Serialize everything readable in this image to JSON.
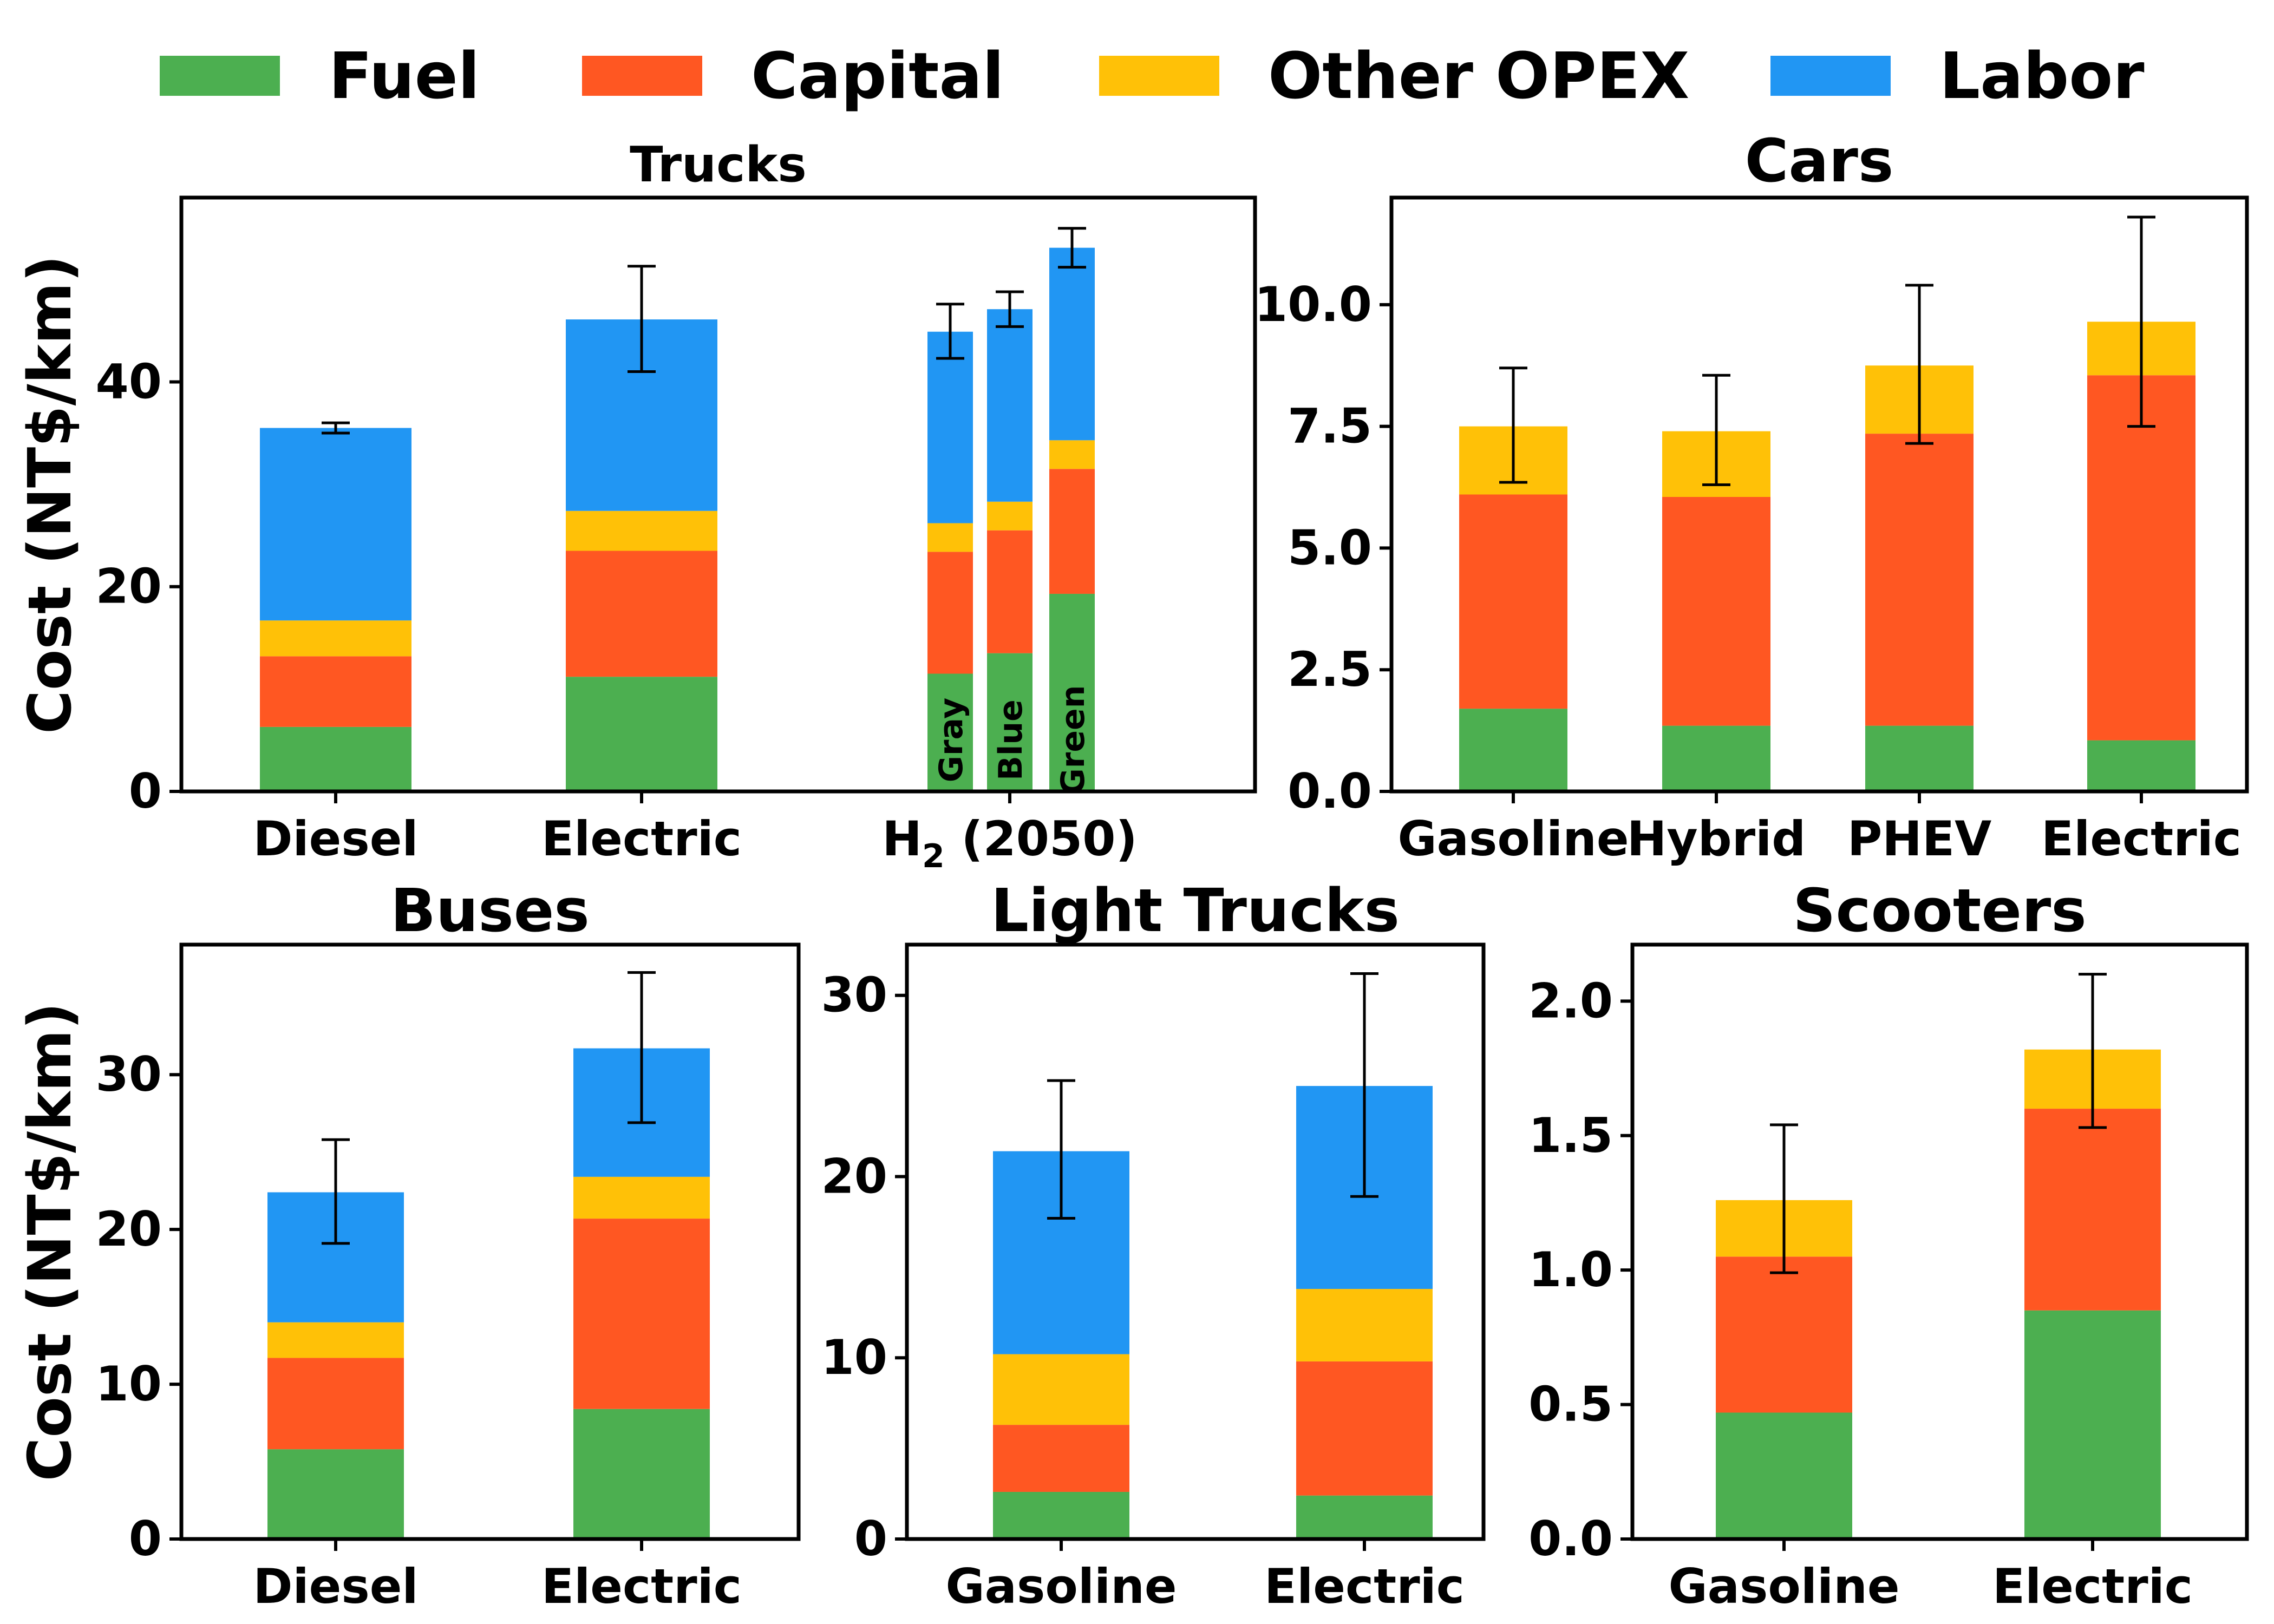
{
  "legend": {
    "items": [
      {
        "key": "fuel",
        "label": "Fuel",
        "color": "#4CAF50"
      },
      {
        "key": "capital",
        "label": "Capital",
        "color": "#FF5722"
      },
      {
        "key": "opex",
        "label": "Other OPEX",
        "color": "#FFC107"
      },
      {
        "key": "labor",
        "label": "Labor",
        "color": "#2196F3"
      }
    ]
  },
  "ylabel": "Cost (NT$/km)",
  "chart_data": [
    {
      "type": "bar",
      "stacked": true,
      "title": "Trucks",
      "ylim": [
        0,
        58
      ],
      "yticks": [
        0,
        20,
        40
      ],
      "groups": [
        {
          "label": "Diesel",
          "bars": [
            {
              "fuel": 6.3,
              "capital": 6.9,
              "opex": 3.5,
              "labor": 18.8,
              "total": 35.5,
              "err_low": 35.0,
              "err_high": 36.0
            }
          ]
        },
        {
          "label": "Electric",
          "bars": [
            {
              "fuel": 11.2,
              "capital": 12.3,
              "opex": 3.9,
              "labor": 18.7,
              "total": 46.1,
              "err_low": 41.0,
              "err_high": 51.3
            }
          ]
        },
        {
          "label": "H₂ (2050)",
          "label_base": "H",
          "label_sub": "2",
          "label_rest": " (2050)",
          "bars": [
            {
              "sublabel": "Gray",
              "fuel": 11.5,
              "capital": 11.9,
              "opex": 2.8,
              "labor": 18.7,
              "total": 44.9,
              "err_low": 42.3,
              "err_high": 47.6
            },
            {
              "sublabel": "Blue",
              "fuel": 13.5,
              "capital": 12.0,
              "opex": 2.8,
              "labor": 18.8,
              "total": 47.1,
              "err_low": 45.4,
              "err_high": 48.8
            },
            {
              "sublabel": "Green",
              "fuel": 19.3,
              "capital": 12.2,
              "opex": 2.8,
              "labor": 18.8,
              "total": 53.1,
              "err_low": 51.2,
              "err_high": 55.0
            }
          ]
        }
      ]
    },
    {
      "type": "bar",
      "stacked": true,
      "title": "Cars",
      "ylim": [
        0,
        12.2
      ],
      "yticks": [
        0.0,
        2.5,
        5.0,
        7.5,
        10.0
      ],
      "tick_format": 1,
      "groups": [
        {
          "label": "Gasoline",
          "bars": [
            {
              "fuel": 1.7,
              "capital": 4.4,
              "opex": 1.4,
              "labor": 0,
              "total": 7.5,
              "err_low": 6.35,
              "err_high": 8.7
            }
          ]
        },
        {
          "label": "Hybrid",
          "bars": [
            {
              "fuel": 1.35,
              "capital": 4.7,
              "opex": 1.35,
              "labor": 0,
              "total": 7.4,
              "err_low": 6.3,
              "err_high": 8.55
            }
          ]
        },
        {
          "label": "PHEV",
          "bars": [
            {
              "fuel": 1.35,
              "capital": 6.0,
              "opex": 1.4,
              "labor": 0,
              "total": 8.75,
              "err_low": 7.15,
              "err_high": 10.4
            }
          ]
        },
        {
          "label": "Electric",
          "bars": [
            {
              "fuel": 1.05,
              "capital": 7.5,
              "opex": 1.1,
              "labor": 0,
              "total": 9.65,
              "err_low": 7.5,
              "err_high": 11.8
            }
          ]
        }
      ]
    },
    {
      "type": "bar",
      "stacked": true,
      "title": "Buses",
      "ylim": [
        0,
        38.4
      ],
      "yticks": [
        0,
        10,
        20,
        30
      ],
      "groups": [
        {
          "label": "Diesel",
          "bars": [
            {
              "fuel": 5.8,
              "capital": 5.9,
              "opex": 2.3,
              "labor": 8.4,
              "total": 22.4,
              "err_low": 19.1,
              "err_high": 25.8
            }
          ]
        },
        {
          "label": "Electric",
          "bars": [
            {
              "fuel": 8.4,
              "capital": 12.3,
              "opex": 2.7,
              "labor": 8.3,
              "total": 31.7,
              "err_low": 26.9,
              "err_high": 36.6
            }
          ]
        }
      ]
    },
    {
      "type": "bar",
      "stacked": true,
      "title": "Light Trucks",
      "ylim": [
        0,
        32.8
      ],
      "yticks": [
        0,
        10,
        20,
        30
      ],
      "groups": [
        {
          "label": "Gasoline",
          "bars": [
            {
              "fuel": 2.6,
              "capital": 3.7,
              "opex": 3.9,
              "labor": 11.2,
              "total": 21.4,
              "err_low": 17.7,
              "err_high": 25.3
            }
          ]
        },
        {
          "label": "Electric",
          "bars": [
            {
              "fuel": 2.4,
              "capital": 7.4,
              "opex": 4.0,
              "labor": 11.2,
              "total": 25.0,
              "err_low": 18.9,
              "err_high": 31.2
            }
          ]
        }
      ]
    },
    {
      "type": "bar",
      "stacked": true,
      "title": "Scooters",
      "ylim": [
        0,
        2.21
      ],
      "yticks": [
        0.0,
        0.5,
        1.0,
        1.5,
        2.0
      ],
      "tick_format": 1,
      "groups": [
        {
          "label": "Gasoline",
          "bars": [
            {
              "fuel": 0.47,
              "capital": 0.58,
              "opex": 0.21,
              "labor": 0,
              "total": 1.26,
              "err_low": 0.99,
              "err_high": 1.54
            }
          ]
        },
        {
          "label": "Electric",
          "bars": [
            {
              "fuel": 0.85,
              "capital": 0.75,
              "opex": 0.22,
              "labor": 0,
              "total": 1.82,
              "err_low": 1.53,
              "err_high": 2.1
            }
          ]
        }
      ]
    }
  ]
}
